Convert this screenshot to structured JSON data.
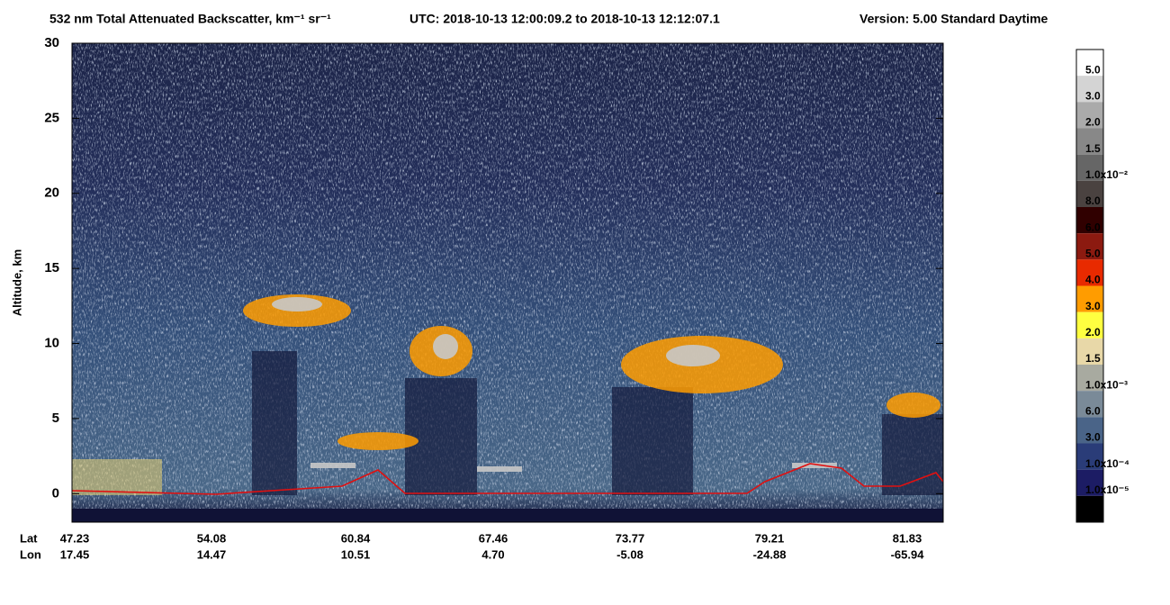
{
  "chart_data": {
    "type": "heatmap",
    "title": "532 nm Total Attenuated Backscatter, km⁻¹ sr⁻¹",
    "subtitle": "UTC:  2018-10-13 12:00:09.2  to  2018-10-13 12:12:07.1",
    "version": "Version: 5.00  Standard  Daytime",
    "ylabel": "Altitude, km",
    "ylim": [
      -1.9,
      30
    ],
    "yticks": [
      0,
      5,
      10,
      15,
      20,
      25,
      30
    ],
    "row_names": [
      "Lat",
      "Lon"
    ],
    "lat_labels": [
      "47.23",
      "54.08",
      "60.84",
      "67.46",
      "73.77",
      "79.21",
      "81.83"
    ],
    "lon_labels": [
      "17.45",
      "14.47",
      "10.51",
      "4.70",
      "-5.08",
      "-24.88",
      "-65.94"
    ],
    "colorbar": {
      "labels": [
        "5.0",
        "3.0",
        "2.0",
        "1.5",
        "1.0x10⁻²",
        "8.0",
        "6.0",
        "5.0",
        "4.0",
        "3.0",
        "2.0",
        "1.5",
        "1.0x10⁻³",
        "6.0",
        "3.0",
        "1.0x10⁻⁴",
        "1.0x10⁻⁵"
      ],
      "colors": [
        "#ffffff",
        "#d4d4d4",
        "#aaaaaa",
        "#888888",
        "#666666",
        "#4a4240",
        "#300000",
        "#8c1a10",
        "#e82a00",
        "#ff9c00",
        "#ffff40",
        "#e8d8a8",
        "#a8aaa0",
        "#7a8a98",
        "#4a6488",
        "#2a3c78",
        "#1c1c64",
        "#000000"
      ]
    }
  }
}
